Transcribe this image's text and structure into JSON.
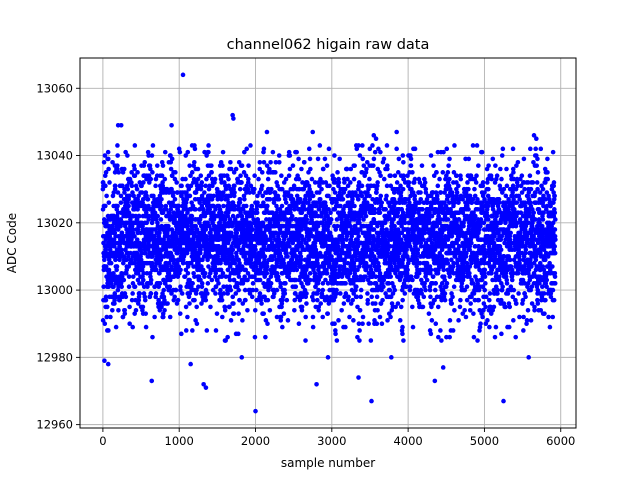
{
  "chart_data": {
    "type": "scatter",
    "title": "channel062 higain raw data",
    "xlabel": "sample number",
    "ylabel": "ADC Code",
    "xlim": [
      -300,
      6200
    ],
    "ylim": [
      12959,
      13069
    ],
    "xticks": [
      0,
      1000,
      2000,
      3000,
      4000,
      5000,
      6000
    ],
    "yticks": [
      12960,
      12980,
      13000,
      13020,
      13040,
      13060
    ],
    "grid": true,
    "marker_color": "#0000ff",
    "marker": "circle",
    "series": [
      {
        "n_points": 5950,
        "mean": 13015,
        "std": 11,
        "x": [
          1050,
          1700,
          1710,
          200,
          240,
          3850,
          3550,
          3580,
          2150,
          2750,
          5650,
          5680,
          900,
          2000,
          3520,
          5250,
          640,
          1350,
          1320,
          1820,
          2800,
          2950,
          3350,
          4350,
          4460,
          70,
          20,
          3780,
          1150,
          5580
        ],
        "y": [
          13064,
          13052,
          13051,
          13049,
          13049,
          13047,
          13046,
          13045,
          13047,
          13047,
          13046,
          13045,
          13049,
          12964,
          12967,
          12967,
          12973,
          12971,
          12972,
          12980,
          12972,
          12980,
          12974,
          12973,
          12977,
          12978,
          12979,
          12980,
          12978,
          12980
        ]
      }
    ]
  }
}
